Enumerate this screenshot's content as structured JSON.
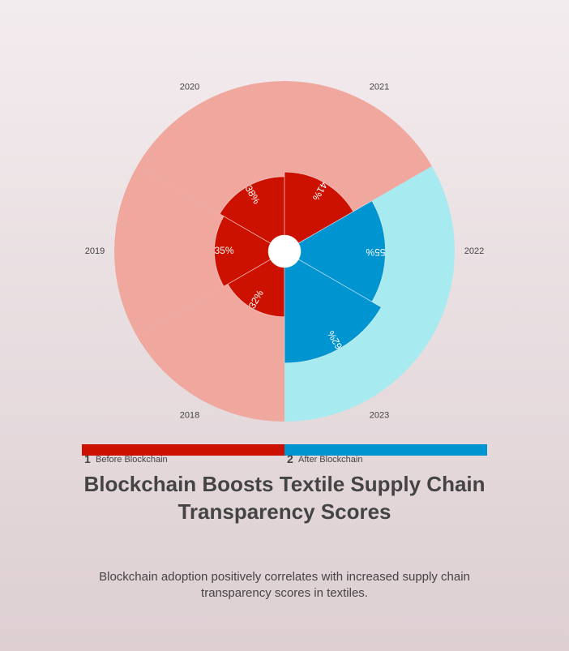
{
  "chart_data": {
    "type": "radial-bar",
    "title": "Blockchain Boosts Textile Supply Chain Transparency Scores",
    "subtitle": "Blockchain adoption positively correlates with increased supply chain transparency scores in textiles.",
    "categories": [
      "2018",
      "2019",
      "2020",
      "2021",
      "2022",
      "2023"
    ],
    "values": [
      32,
      35,
      38,
      41,
      55,
      62
    ],
    "value_labels": [
      "32%",
      "35%",
      "38%",
      "41%",
      "55%",
      "62%"
    ],
    "groups": [
      {
        "number": "1",
        "name": "Before Blockchain",
        "years": [
          "2018",
          "2019",
          "2020",
          "2021"
        ],
        "color": "#cc1100",
        "bg_color": "#f0a79e"
      },
      {
        "number": "2",
        "name": "After Blockchain",
        "years": [
          "2022",
          "2023"
        ],
        "color": "#0094d0",
        "bg_color": "#a7eaef"
      }
    ],
    "ylim": [
      0,
      100
    ]
  }
}
